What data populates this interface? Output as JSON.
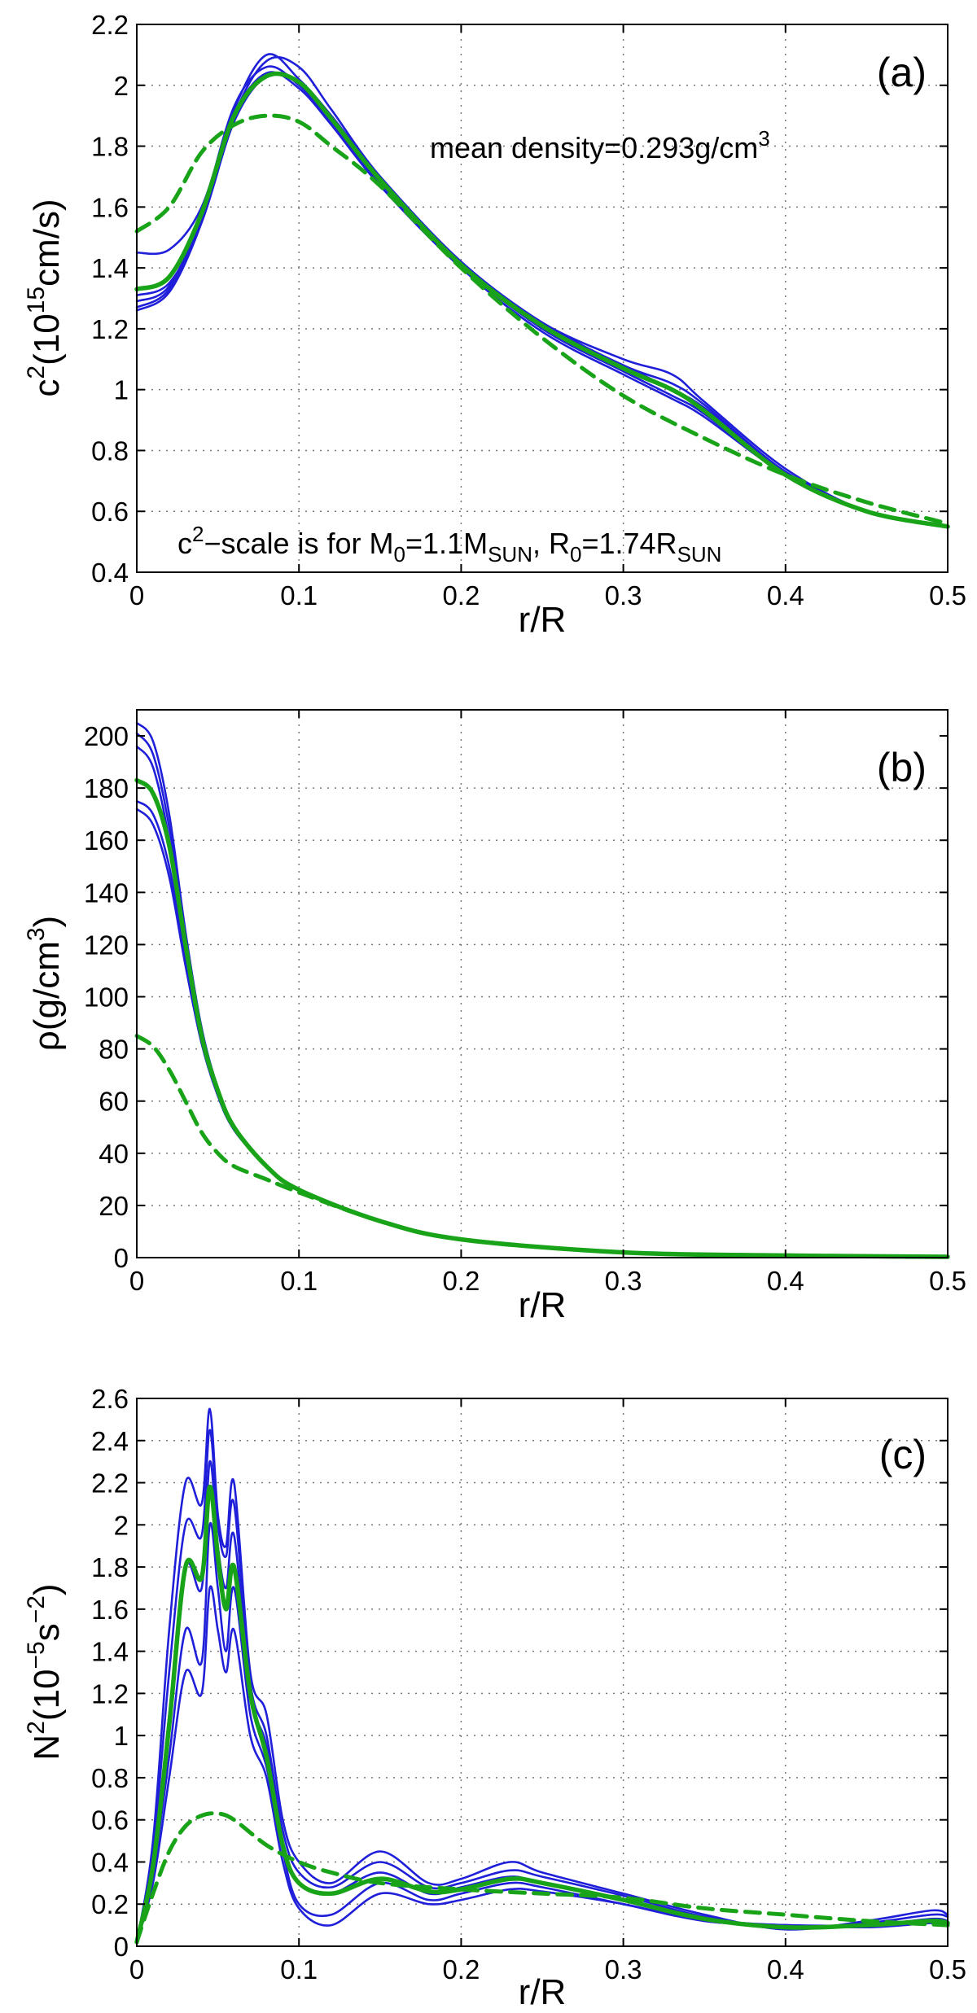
{
  "chart_data": [
    {
      "type": "line",
      "panel_label": "(a)",
      "xlabel": "r/R",
      "ylabel": {
        "base": "c",
        "sup1": "2",
        "mid": "(10",
        "sup2": "15",
        "tail": "cm/s)"
      },
      "annotation_top": {
        "text": "mean density=0.293g/cm",
        "sup": "3"
      },
      "annotation_bottom": {
        "p1": "c",
        "s1": "2",
        "p2": "−scale is for M",
        "s2": "0",
        "p3": "=1.1M",
        "s3": "SUN",
        "p4": ", R",
        "s4": "0",
        "p5": "=1.74R",
        "s5": "SUN"
      },
      "xlim": [
        0,
        0.5
      ],
      "ylim": [
        0.4,
        2.2
      ],
      "xticks": [
        0,
        0.1,
        0.2,
        0.3,
        0.4,
        0.5
      ],
      "xtick_labels": [
        "0",
        "0.1",
        "0.2",
        "0.3",
        "0.4",
        "0.5"
      ],
      "yticks": [
        0.4,
        0.6,
        0.8,
        1.0,
        1.2,
        1.4,
        1.6,
        1.8,
        2.0,
        2.2
      ],
      "ytick_labels": [
        "0.4",
        "0.6",
        "0.8",
        "1",
        "1.2",
        "1.4",
        "1.6",
        "1.8",
        "2",
        "2.2"
      ],
      "grid": true,
      "series": [
        {
          "style": "blue",
          "x": [
            0,
            0.02,
            0.04,
            0.06,
            0.08,
            0.1,
            0.12,
            0.15,
            0.2,
            0.25,
            0.3,
            0.33,
            0.35,
            0.4,
            0.45,
            0.5
          ],
          "y": [
            1.45,
            1.46,
            1.6,
            1.92,
            2.1,
            2.02,
            1.9,
            1.7,
            1.42,
            1.22,
            1.08,
            1.02,
            0.95,
            0.73,
            0.6,
            0.55
          ]
        },
        {
          "style": "blue",
          "x": [
            0,
            0.02,
            0.04,
            0.06,
            0.08,
            0.1,
            0.12,
            0.15,
            0.2,
            0.25,
            0.3,
            0.33,
            0.35,
            0.4,
            0.45,
            0.5
          ],
          "y": [
            1.26,
            1.32,
            1.55,
            1.9,
            2.08,
            2.06,
            1.92,
            1.7,
            1.42,
            1.22,
            1.1,
            1.05,
            0.96,
            0.74,
            0.6,
            0.55
          ]
        },
        {
          "style": "blue",
          "x": [
            0,
            0.02,
            0.04,
            0.06,
            0.08,
            0.1,
            0.12,
            0.15,
            0.2,
            0.25,
            0.3,
            0.33,
            0.35,
            0.4,
            0.45,
            0.5
          ],
          "y": [
            1.29,
            1.34,
            1.58,
            1.93,
            2.06,
            2.0,
            1.88,
            1.68,
            1.41,
            1.21,
            1.08,
            1.0,
            0.94,
            0.73,
            0.6,
            0.55
          ]
        },
        {
          "style": "blue",
          "x": [
            0,
            0.02,
            0.04,
            0.06,
            0.08,
            0.1,
            0.12,
            0.15,
            0.2,
            0.25,
            0.3,
            0.33,
            0.35,
            0.4,
            0.45,
            0.5
          ],
          "y": [
            1.31,
            1.35,
            1.55,
            1.88,
            2.03,
            2.01,
            1.89,
            1.69,
            1.41,
            1.2,
            1.06,
            0.98,
            0.92,
            0.72,
            0.6,
            0.55
          ]
        },
        {
          "style": "blue",
          "x": [
            0,
            0.02,
            0.04,
            0.06,
            0.08,
            0.1,
            0.12,
            0.15,
            0.2,
            0.25,
            0.3,
            0.33,
            0.35,
            0.4,
            0.45,
            0.5
          ],
          "y": [
            1.27,
            1.33,
            1.56,
            1.9,
            2.04,
            1.99,
            1.87,
            1.67,
            1.4,
            1.19,
            1.05,
            0.97,
            0.91,
            0.72,
            0.6,
            0.55
          ]
        },
        {
          "style": "green",
          "x": [
            0,
            0.02,
            0.04,
            0.06,
            0.08,
            0.1,
            0.12,
            0.15,
            0.2,
            0.25,
            0.3,
            0.33,
            0.35,
            0.4,
            0.45,
            0.5
          ],
          "y": [
            1.33,
            1.37,
            1.58,
            1.9,
            2.03,
            2.01,
            1.89,
            1.69,
            1.41,
            1.21,
            1.07,
            1.0,
            0.93,
            0.72,
            0.6,
            0.55
          ]
        },
        {
          "style": "green-dash",
          "x": [
            0,
            0.02,
            0.04,
            0.06,
            0.08,
            0.1,
            0.12,
            0.15,
            0.2,
            0.25,
            0.3,
            0.35,
            0.4,
            0.45,
            0.5
          ],
          "y": [
            1.52,
            1.6,
            1.78,
            1.87,
            1.9,
            1.88,
            1.8,
            1.67,
            1.4,
            1.17,
            0.98,
            0.84,
            0.72,
            0.63,
            0.56
          ]
        }
      ]
    },
    {
      "type": "line",
      "panel_label": "(b)",
      "xlabel": "r/R",
      "ylabel": {
        "base": "ρ(g/cm",
        "sup1": "3",
        "tail": ")"
      },
      "xlim": [
        0,
        0.5
      ],
      "ylim": [
        0,
        210
      ],
      "xticks": [
        0,
        0.1,
        0.2,
        0.3,
        0.4,
        0.5
      ],
      "xtick_labels": [
        "0",
        "0.1",
        "0.2",
        "0.3",
        "0.4",
        "0.5"
      ],
      "yticks": [
        0,
        20,
        40,
        60,
        80,
        100,
        120,
        140,
        160,
        180,
        200
      ],
      "ytick_labels": [
        "0",
        "20",
        "40",
        "60",
        "80",
        "100",
        "120",
        "140",
        "160",
        "180",
        "200"
      ],
      "grid": true,
      "series": [
        {
          "style": "blue",
          "x": [
            0,
            0.01,
            0.02,
            0.03,
            0.04,
            0.05,
            0.06,
            0.08,
            0.1,
            0.15,
            0.2,
            0.3,
            0.4,
            0.5
          ],
          "y": [
            205,
            198,
            170,
            125,
            88,
            65,
            50,
            35,
            26,
            14,
            7,
            2,
            0.8,
            0.3
          ]
        },
        {
          "style": "blue",
          "x": [
            0,
            0.01,
            0.02,
            0.03,
            0.04,
            0.05,
            0.06,
            0.08,
            0.1,
            0.15,
            0.2,
            0.3,
            0.4,
            0.5
          ],
          "y": [
            201,
            193,
            165,
            122,
            86,
            64,
            50,
            35,
            26,
            14,
            7,
            2,
            0.8,
            0.3
          ]
        },
        {
          "style": "blue",
          "x": [
            0,
            0.01,
            0.02,
            0.03,
            0.04,
            0.05,
            0.06,
            0.08,
            0.1,
            0.15,
            0.2,
            0.3,
            0.4,
            0.5
          ],
          "y": [
            196,
            188,
            160,
            118,
            84,
            63,
            49,
            35,
            26,
            14,
            7,
            2,
            0.8,
            0.3
          ]
        },
        {
          "style": "blue",
          "x": [
            0,
            0.01,
            0.02,
            0.03,
            0.04,
            0.05,
            0.06,
            0.08,
            0.1,
            0.15,
            0.2,
            0.3,
            0.4,
            0.5
          ],
          "y": [
            175,
            170,
            150,
            115,
            83,
            63,
            49,
            35,
            26,
            14,
            7,
            2,
            0.8,
            0.3
          ]
        },
        {
          "style": "blue",
          "x": [
            0,
            0.01,
            0.02,
            0.03,
            0.04,
            0.05,
            0.06,
            0.08,
            0.1,
            0.15,
            0.2,
            0.3,
            0.4,
            0.5
          ],
          "y": [
            172,
            166,
            146,
            112,
            82,
            62,
            49,
            35,
            26,
            14,
            7,
            2,
            0.8,
            0.3
          ]
        },
        {
          "style": "green",
          "x": [
            0,
            0.01,
            0.02,
            0.03,
            0.04,
            0.05,
            0.06,
            0.08,
            0.1,
            0.15,
            0.2,
            0.3,
            0.4,
            0.5
          ],
          "y": [
            183,
            178,
            158,
            120,
            85,
            64,
            50,
            35,
            26,
            14,
            7,
            2,
            0.8,
            0.3
          ]
        },
        {
          "style": "green-dash",
          "x": [
            0,
            0.01,
            0.02,
            0.03,
            0.04,
            0.05,
            0.06,
            0.08,
            0.1,
            0.15,
            0.2,
            0.3,
            0.4,
            0.5
          ],
          "y": [
            85,
            81,
            72,
            60,
            48,
            40,
            35,
            30,
            25,
            14,
            7,
            2,
            0.8,
            0.3
          ]
        }
      ]
    },
    {
      "type": "line",
      "panel_label": "(c)",
      "xlabel": "r/R",
      "ylabel": {
        "base": "N",
        "sup1": "2",
        "mid": "(10",
        "sup2": "−5",
        "mid2": "s",
        "sup3": "−2",
        "tail": ")"
      },
      "xlim": [
        0,
        0.5
      ],
      "ylim": [
        0,
        2.6
      ],
      "xticks": [
        0,
        0.1,
        0.2,
        0.3,
        0.4,
        0.5
      ],
      "xtick_labels": [
        "0",
        "0.1",
        "0.2",
        "0.3",
        "0.4",
        "0.5"
      ],
      "yticks": [
        0,
        0.2,
        0.4,
        0.6,
        0.8,
        1.0,
        1.2,
        1.4,
        1.6,
        1.8,
        2.0,
        2.2,
        2.4,
        2.6
      ],
      "ytick_labels": [
        "0",
        "0.2",
        "0.4",
        "0.6",
        "0.8",
        "1",
        "1.2",
        "1.4",
        "1.6",
        "1.8",
        "2",
        "2.2",
        "2.4",
        "2.6"
      ],
      "grid": true,
      "series": [
        {
          "style": "blue",
          "x": [
            0,
            0.01,
            0.02,
            0.03,
            0.04,
            0.045,
            0.05,
            0.055,
            0.06,
            0.07,
            0.08,
            0.09,
            0.1,
            0.12,
            0.15,
            0.18,
            0.2,
            0.23,
            0.25,
            0.3,
            0.35,
            0.4,
            0.45,
            0.49,
            0.5
          ],
          "y": [
            0.02,
            0.5,
            1.5,
            2.2,
            2.1,
            2.55,
            2.05,
            1.9,
            2.2,
            1.3,
            1.1,
            0.6,
            0.4,
            0.3,
            0.45,
            0.3,
            0.32,
            0.4,
            0.35,
            0.25,
            0.15,
            0.08,
            0.12,
            0.17,
            0.15
          ]
        },
        {
          "style": "blue",
          "x": [
            0,
            0.01,
            0.02,
            0.03,
            0.04,
            0.045,
            0.05,
            0.055,
            0.06,
            0.07,
            0.08,
            0.09,
            0.1,
            0.12,
            0.15,
            0.18,
            0.2,
            0.23,
            0.25,
            0.3,
            0.35,
            0.4,
            0.45,
            0.49,
            0.5
          ],
          "y": [
            0.02,
            0.45,
            1.3,
            2.0,
            1.95,
            2.45,
            2.0,
            1.85,
            2.1,
            1.25,
            1.0,
            0.55,
            0.35,
            0.28,
            0.4,
            0.28,
            0.3,
            0.36,
            0.33,
            0.24,
            0.14,
            0.09,
            0.11,
            0.15,
            0.14
          ]
        },
        {
          "style": "blue",
          "x": [
            0,
            0.01,
            0.02,
            0.03,
            0.04,
            0.045,
            0.05,
            0.055,
            0.06,
            0.07,
            0.08,
            0.09,
            0.1,
            0.12,
            0.15,
            0.18,
            0.2,
            0.23,
            0.25,
            0.3,
            0.35,
            0.4,
            0.45,
            0.49,
            0.5
          ],
          "y": [
            0.02,
            0.4,
            1.1,
            1.8,
            1.7,
            2.3,
            1.9,
            1.7,
            1.95,
            1.2,
            0.95,
            0.5,
            0.3,
            0.25,
            0.35,
            0.25,
            0.28,
            0.33,
            0.3,
            0.22,
            0.13,
            0.1,
            0.1,
            0.13,
            0.12
          ]
        },
        {
          "style": "blue",
          "x": [
            0,
            0.01,
            0.02,
            0.03,
            0.04,
            0.045,
            0.05,
            0.055,
            0.06,
            0.07,
            0.08,
            0.09,
            0.1,
            0.12,
            0.15,
            0.18,
            0.2,
            0.23,
            0.25,
            0.3,
            0.35,
            0.4,
            0.45,
            0.49,
            0.5
          ],
          "y": [
            0.02,
            0.35,
            0.9,
            1.5,
            1.35,
            2.0,
            1.7,
            1.4,
            1.7,
            1.1,
            0.85,
            0.45,
            0.2,
            0.15,
            0.3,
            0.22,
            0.25,
            0.3,
            0.28,
            0.2,
            0.12,
            0.1,
            0.1,
            0.12,
            0.11
          ]
        },
        {
          "style": "blue",
          "x": [
            0,
            0.01,
            0.02,
            0.03,
            0.04,
            0.045,
            0.05,
            0.055,
            0.06,
            0.07,
            0.08,
            0.09,
            0.1,
            0.12,
            0.15,
            0.18,
            0.2,
            0.23,
            0.25,
            0.3,
            0.35,
            0.4,
            0.45,
            0.49,
            0.5
          ],
          "y": [
            0.02,
            0.3,
            0.8,
            1.3,
            1.2,
            1.7,
            1.5,
            1.3,
            1.5,
            1.0,
            0.8,
            0.4,
            0.18,
            0.1,
            0.25,
            0.2,
            0.22,
            0.27,
            0.26,
            0.2,
            0.12,
            0.1,
            0.09,
            0.11,
            0.1
          ]
        },
        {
          "style": "green",
          "x": [
            0,
            0.01,
            0.02,
            0.03,
            0.04,
            0.045,
            0.05,
            0.055,
            0.06,
            0.07,
            0.08,
            0.09,
            0.1,
            0.12,
            0.15,
            0.18,
            0.2,
            0.23,
            0.25,
            0.3,
            0.35,
            0.4,
            0.45,
            0.49,
            0.5
          ],
          "y": [
            0.02,
            0.38,
            1.05,
            1.8,
            1.75,
            2.18,
            1.85,
            1.6,
            1.8,
            1.2,
            0.9,
            0.48,
            0.3,
            0.25,
            0.32,
            0.26,
            0.27,
            0.32,
            0.3,
            0.22,
            0.13,
            0.09,
            0.1,
            0.12,
            0.11
          ]
        },
        {
          "style": "green-dash",
          "x": [
            0,
            0.01,
            0.02,
            0.03,
            0.04,
            0.05,
            0.06,
            0.08,
            0.1,
            0.12,
            0.15,
            0.2,
            0.25,
            0.3,
            0.35,
            0.4,
            0.45,
            0.5
          ],
          "y": [
            0.02,
            0.25,
            0.45,
            0.57,
            0.62,
            0.63,
            0.6,
            0.48,
            0.4,
            0.35,
            0.3,
            0.27,
            0.25,
            0.23,
            0.18,
            0.15,
            0.12,
            0.1
          ]
        }
      ]
    }
  ],
  "colors": {
    "blue": "#1f1fd9",
    "green": "#19a319"
  }
}
